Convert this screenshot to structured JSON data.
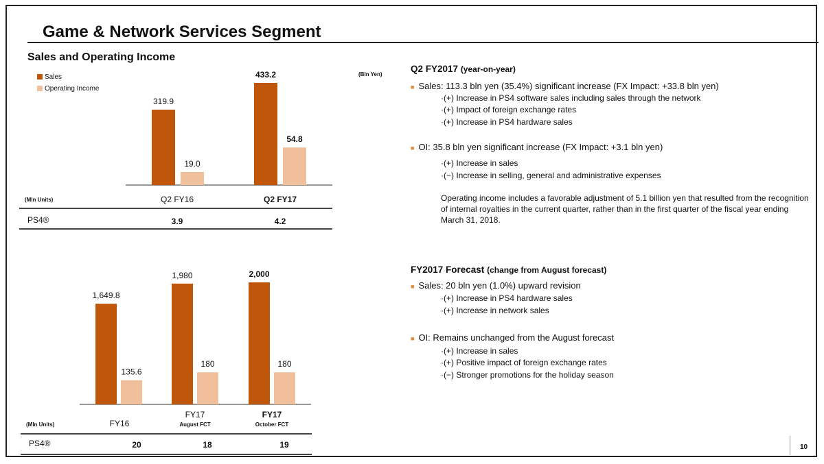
{
  "title": "Game & Network Services Segment",
  "subtitle": "Sales and Operating Income",
  "page_number": "10",
  "colors": {
    "sales": "#c0560a",
    "operating_income": "#f0bf9c"
  },
  "chart_data": [
    {
      "type": "bar",
      "unit": "(Bln Yen)",
      "categories": [
        "Q2 FY16",
        "Q2 FY17"
      ],
      "series": [
        {
          "name": "Sales",
          "values": [
            319.9,
            433.2
          ]
        },
        {
          "name": "Operating Income",
          "values": [
            19.0,
            54.8
          ]
        }
      ],
      "data_labels": {
        "Sales": [
          "319.9",
          "433.2"
        ],
        "Operating Income": [
          "19.0",
          "54.8"
        ]
      },
      "legend": "top-left",
      "table": {
        "unit_label": "(Mln Units)",
        "row_label": "PS4®",
        "values": [
          "3.9",
          "4.2"
        ]
      }
    },
    {
      "type": "bar",
      "categories": [
        "FY16",
        "FY17",
        "FY17"
      ],
      "category_sublabels": [
        "",
        "August FCT",
        "October FCT"
      ],
      "series": [
        {
          "name": "Sales",
          "values": [
            1649.8,
            1980,
            2000
          ]
        },
        {
          "name": "Operating Income",
          "values": [
            135.6,
            180,
            180
          ]
        }
      ],
      "data_labels": {
        "Sales": [
          "1,649.8",
          "1,980",
          "2,000"
        ],
        "Operating Income": [
          "135.6",
          "180",
          "180"
        ]
      },
      "table": {
        "unit_label": "(Mln Units)",
        "row_label": "PS4®",
        "values": [
          "20",
          "18",
          "19"
        ]
      }
    }
  ],
  "q2": {
    "heading": "Q2 FY2017",
    "heading_note": "(year-on-year)",
    "sales": "Sales: 113.3 bln yen (35.4%) significant increase (FX Impact: +33.8 bln yen)",
    "sales_items": [
      "·(+) Increase in PS4 software sales including sales through the network",
      "·(+) Impact of foreign exchange rates",
      "·(+) Increase in PS4 hardware sales"
    ],
    "oi": "OI: 35.8 bln yen significant increase (FX Impact: +3.1 bln yen)",
    "oi_items": [
      "·(+) Increase in sales",
      "·(−) Increase in selling, general and administrative expenses"
    ],
    "note": "Operating income includes a favorable adjustment of 5.1 billion yen that resulted from the recognition of internal royalties in the current quarter, rather than in the first quarter of the fiscal year ending March 31, 2018."
  },
  "forecast": {
    "heading": "FY2017 Forecast",
    "heading_note": "(change from August forecast)",
    "sales": "Sales: 20 bln yen (1.0%) upward revision",
    "sales_items": [
      "·(+) Increase in PS4 hardware sales",
      "·(+) Increase in network sales"
    ],
    "oi": "OI: Remains unchanged from the August forecast",
    "oi_items": [
      "·(+) Increase in sales",
      "·(+) Positive impact of foreign exchange rates",
      "·(−) Stronger promotions for the holiday season"
    ]
  }
}
